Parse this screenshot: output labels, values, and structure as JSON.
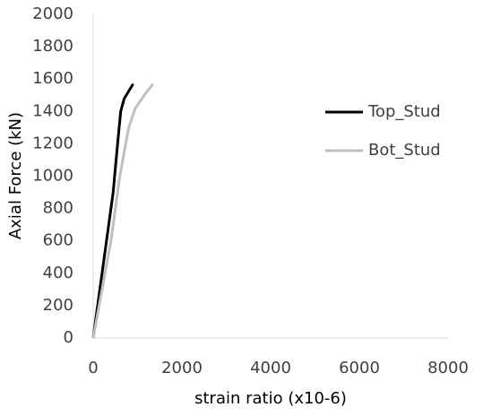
{
  "chart_data": {
    "type": "line",
    "x_label": "strain ratio (x10-6)",
    "y_label": "Axial Force (kN)",
    "xlim": [
      0,
      8000
    ],
    "xticks": [
      0,
      2000,
      4000,
      6000,
      8000
    ],
    "ylim": [
      0,
      2000
    ],
    "yticks": [
      0,
      200,
      400,
      600,
      800,
      1000,
      1200,
      1400,
      1600,
      1800,
      2000
    ],
    "grid": false,
    "legend": "right",
    "series": [
      {
        "name": "Top_Stud",
        "color": "#000000",
        "x": [
          0,
          150,
          300,
          450,
          550,
          620,
          700,
          900
        ],
        "values": [
          0,
          300,
          600,
          900,
          1200,
          1400,
          1480,
          1570
        ]
      },
      {
        "name": "Bot_Stud",
        "color": "#bfbfbf",
        "x": [
          0,
          200,
          400,
          600,
          800,
          950,
          1150,
          1350
        ],
        "values": [
          0,
          300,
          600,
          1000,
          1300,
          1420,
          1500,
          1570
        ]
      }
    ]
  }
}
